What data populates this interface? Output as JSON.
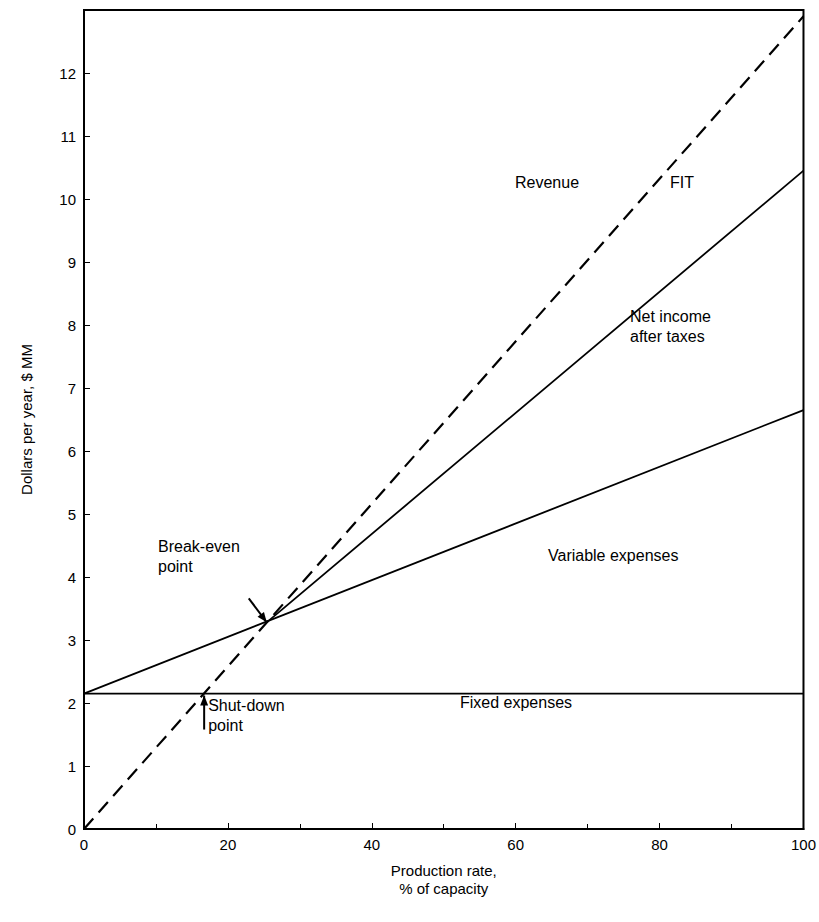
{
  "chart_data": {
    "type": "line",
    "x_label": "Production rate,\n% of capacity",
    "y_label": "Dollars per year, $ MM",
    "xlim": [
      0,
      100
    ],
    "xticks": [
      0,
      20,
      40,
      60,
      80,
      100
    ],
    "ylim": [
      0,
      13
    ],
    "yticks": [
      0,
      1,
      2,
      3,
      4,
      5,
      6,
      7,
      8,
      9,
      10,
      11,
      12
    ],
    "grid": false,
    "series": [
      {
        "name": "Revenue",
        "color": "#000000",
        "line_style": "dashed",
        "x": [
          0,
          100
        ],
        "values": [
          0,
          12.9
        ]
      },
      {
        "name": "Fixed expenses",
        "color": "#000000",
        "line_style": "solid",
        "x": [
          0,
          100
        ],
        "values": [
          2.15,
          2.15
        ]
      },
      {
        "name": "Variable expenses",
        "color": "#000000",
        "line_style": "solid",
        "x": [
          0,
          100
        ],
        "values": [
          2.15,
          6.65
        ]
      },
      {
        "name": "Net income\nafter taxes",
        "color": "#000000",
        "line_style": "solid",
        "x": [
          25.4,
          100
        ],
        "values": [
          3.28,
          10.45
        ]
      }
    ],
    "annotations": [
      {
        "text": "FIT"
      },
      {
        "text": "Break-even\npoint",
        "x": 25.4,
        "y": 3.28
      },
      {
        "text": "Shut-down\npoint",
        "x": 16.7,
        "y": 2.15
      }
    ]
  }
}
